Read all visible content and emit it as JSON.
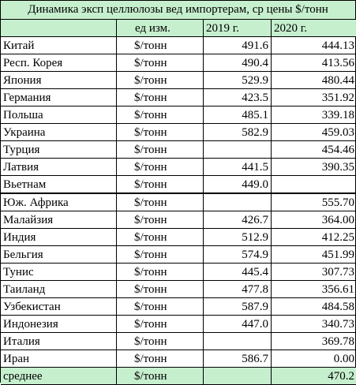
{
  "title": "Динамика эксп целлюлозы вед импортерам, ср цены $/тонн",
  "columns": [
    "",
    "ед изм.",
    "2019 г.",
    "2020 г."
  ],
  "rows": [
    {
      "country": "Китай",
      "unit": "$/тонн",
      "y2019": "491.6",
      "y2020": "444.13"
    },
    {
      "country": "Респ. Корея",
      "unit": "$/тонн",
      "y2019": "490.4",
      "y2020": "413.56"
    },
    {
      "country": "Япония",
      "unit": "$/тонн",
      "y2019": "529.9",
      "y2020": "480.44"
    },
    {
      "country": "Германия",
      "unit": "$/тонн",
      "y2019": "423.5",
      "y2020": "351.92"
    },
    {
      "country": "Польша",
      "unit": "$/тонн",
      "y2019": "485.1",
      "y2020": "339.18"
    },
    {
      "country": "Украина",
      "unit": "$/тонн",
      "y2019": "582.9",
      "y2020": "459.03"
    },
    {
      "country": "Турция",
      "unit": "$/тонн",
      "y2019": "",
      "y2020": "454.46"
    },
    {
      "country": "Латвия",
      "unit": "$/тонн",
      "y2019": "441.5",
      "y2020": "390.35"
    },
    {
      "country": "Вьетнам",
      "unit": "$/тонн",
      "y2019": "449.0",
      "y2020": ""
    },
    {
      "country": "Юж. Африка",
      "unit": "$/тонн",
      "y2019": "",
      "y2020": "555.70"
    },
    {
      "country": "Малайзия",
      "unit": "$/тонн",
      "y2019": "426.7",
      "y2020": "364.00"
    },
    {
      "country": "Индия",
      "unit": "$/тонн",
      "y2019": "512.9",
      "y2020": "412.25"
    },
    {
      "country": "Бельгия",
      "unit": "$/тонн",
      "y2019": "574.9",
      "y2020": "451.99"
    },
    {
      "country": "Тунис",
      "unit": "$/тонн",
      "y2019": "445.4",
      "y2020": "307.73"
    },
    {
      "country": "Таиланд",
      "unit": "$/тонн",
      "y2019": "477.8",
      "y2020": "356.61"
    },
    {
      "country": "Узбекистан",
      "unit": "$/тонн",
      "y2019": "587.9",
      "y2020": "484.58"
    },
    {
      "country": "Индонезия",
      "unit": "$/тонн",
      "y2019": "447.0",
      "y2020": "340.73"
    },
    {
      "country": "Италия",
      "unit": "$/тонн",
      "y2019": "",
      "y2020": "369.78"
    },
    {
      "country": "Иран",
      "unit": "$/тонн",
      "y2019": "586.7",
      "y2020": "0.00"
    }
  ],
  "total": {
    "label": "среднее",
    "unit": "$/тонн",
    "y2019": "",
    "y2020": "470.2"
  },
  "colors": {
    "header_bg": "#c6efce",
    "border": "#000000"
  }
}
